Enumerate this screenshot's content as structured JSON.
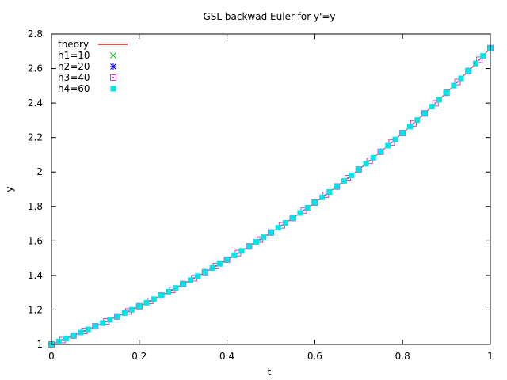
{
  "chart_data": {
    "type": "scatter",
    "title": "GSL backwad Euler for y'=y",
    "xlabel": "t",
    "ylabel": "y",
    "xlim": [
      0,
      1
    ],
    "ylim": [
      1,
      2.8
    ],
    "xticks": [
      0,
      0.2,
      0.4,
      0.6,
      0.8,
      1
    ],
    "xtick_labels": [
      "0",
      "0.2",
      "0.4",
      "0.6",
      "0.8",
      "1"
    ],
    "yticks": [
      1,
      1.2,
      1.4,
      1.6,
      1.8,
      2,
      2.2,
      2.4,
      2.6,
      2.8
    ],
    "ytick_labels": [
      "1",
      "1.2",
      "1.4",
      "1.6",
      "1.8",
      "2",
      "2.2",
      "2.4",
      "2.6",
      "2.8"
    ],
    "grid": false,
    "legend_position": "top-left",
    "series": [
      {
        "name": "theory",
        "style": "line",
        "color": "#e41a1c",
        "function": "exp(t)",
        "t_range": [
          0,
          1
        ]
      },
      {
        "name": "h1=10",
        "style": "x-marker",
        "color": "#00c000",
        "n_steps": 10,
        "t_range": [
          0,
          1
        ],
        "function": "exp(t)"
      },
      {
        "name": "h2=20",
        "style": "star-marker",
        "color": "#0000ff",
        "n_steps": 20,
        "t_range": [
          0,
          1
        ],
        "function": "exp(t)"
      },
      {
        "name": "h3=40",
        "style": "open-square-marker",
        "color": "#cc44cc",
        "n_steps": 40,
        "t_range": [
          0,
          1
        ],
        "function": "exp(t)"
      },
      {
        "name": "h4=60",
        "style": "filled-square-marker",
        "color": "#00e5e5",
        "n_steps": 60,
        "t_range": [
          0,
          1
        ],
        "function": "exp(t)"
      }
    ]
  }
}
